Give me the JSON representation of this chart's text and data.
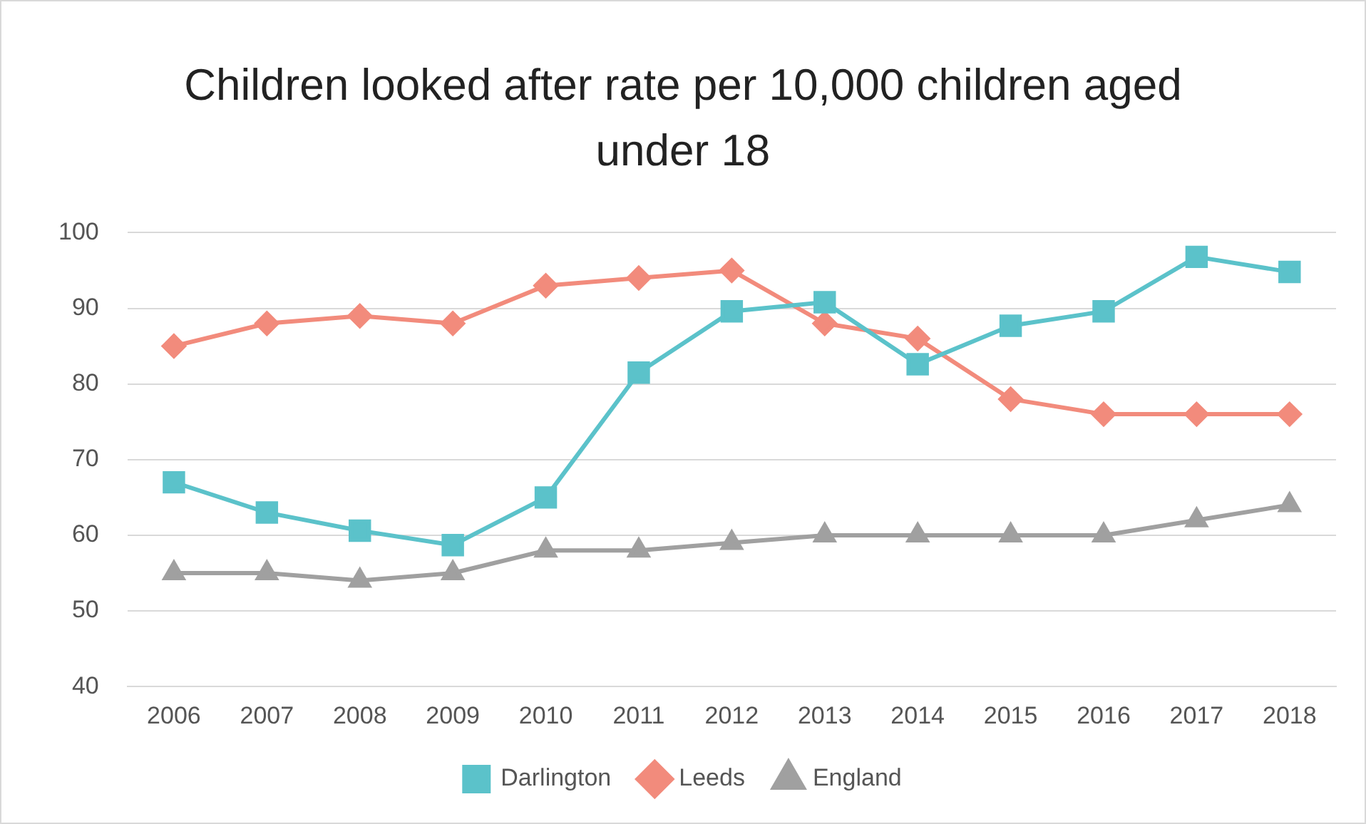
{
  "chart_data": {
    "type": "line",
    "title": "Children looked after rate per 10,000 children aged under 18",
    "categories": [
      "2006",
      "2007",
      "2008",
      "2009",
      "2010",
      "2011",
      "2012",
      "2013",
      "2014",
      "2015",
      "2016",
      "2017",
      "2018"
    ],
    "series": [
      {
        "name": "Darlington",
        "color": "#5bc2ca",
        "marker": "square",
        "values": [
          67,
          63,
          60.6,
          58.7,
          65,
          81.5,
          89.6,
          90.8,
          82.6,
          87.7,
          89.6,
          96.8,
          94.8
        ]
      },
      {
        "name": "Leeds",
        "color": "#f28b7c",
        "marker": "diamond",
        "values": [
          85,
          88,
          89,
          88,
          93,
          94,
          95,
          88,
          86,
          78,
          76,
          76,
          76
        ]
      },
      {
        "name": "England",
        "color": "#a0a0a0",
        "marker": "triangle",
        "values": [
          55,
          55,
          54,
          55,
          58,
          58,
          59,
          60,
          60,
          60,
          60,
          62,
          64
        ]
      }
    ],
    "ylim": [
      40,
      100
    ],
    "yticks": [
      40,
      50,
      60,
      70,
      80,
      90,
      100
    ],
    "grid": "y",
    "legend": "bottom",
    "line_style": "solid"
  }
}
